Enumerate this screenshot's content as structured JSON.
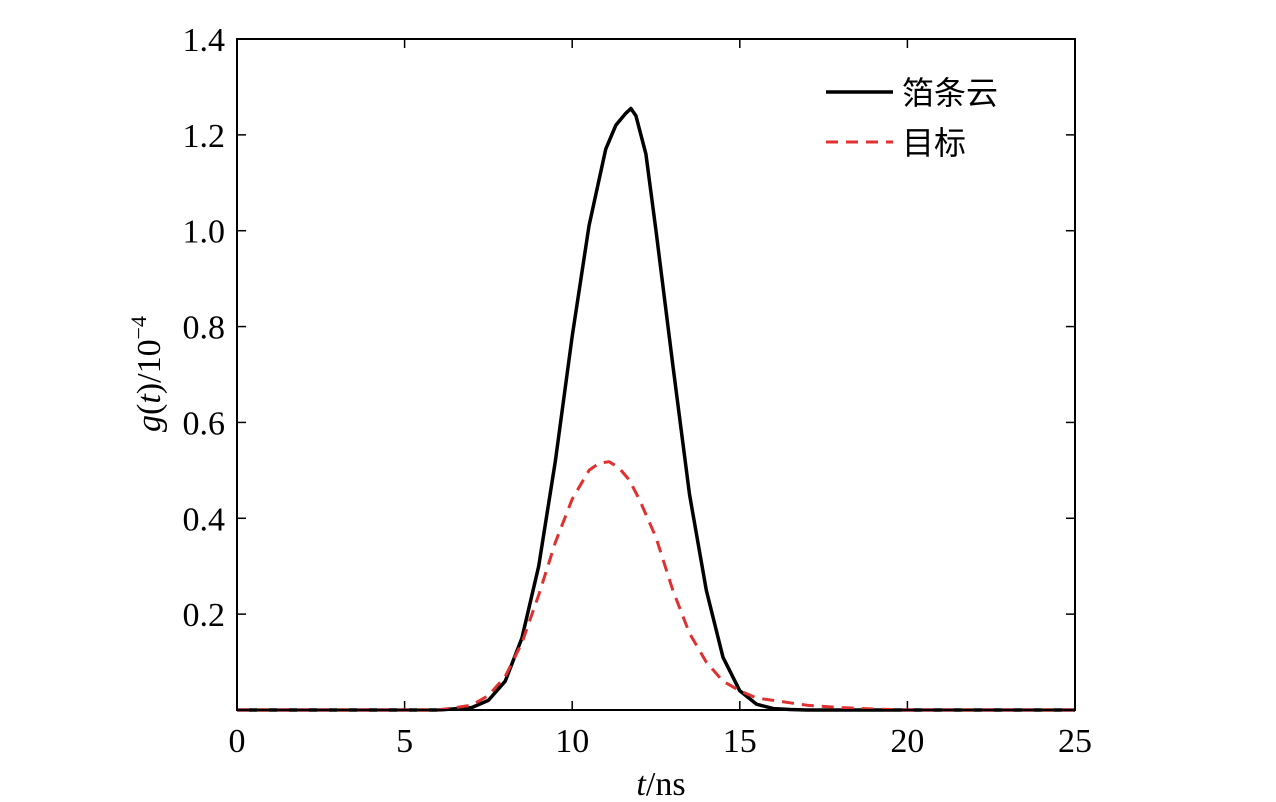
{
  "chart_data": {
    "type": "line",
    "xlabel_var": "t",
    "xlabel_unit": "/ns",
    "ylabel_var": "g",
    "ylabel_arg": "t",
    "ylabel_scale": "/10",
    "ylabel_exp": "−4",
    "xlim": [
      0,
      25
    ],
    "ylim": [
      0,
      1.4
    ],
    "xticks": [
      "0",
      "5",
      "10",
      "15",
      "20",
      "25"
    ],
    "yticks": [
      "0.2",
      "0.4",
      "0.6",
      "0.8",
      "1.0",
      "1.2",
      "1.4"
    ],
    "legend_position": "top-right",
    "series": [
      {
        "name": "箔条云",
        "style": "solid",
        "color": "#000000",
        "x": [
          0,
          6,
          7,
          7.5,
          8,
          8.5,
          9,
          9.5,
          10,
          10.5,
          11,
          11.3,
          11.6,
          11.75,
          11.9,
          12.2,
          12.5,
          13,
          13.5,
          14,
          14.5,
          15,
          15.5,
          16,
          16.5,
          17,
          18,
          25
        ],
        "y": [
          0,
          0,
          0.005,
          0.02,
          0.06,
          0.15,
          0.3,
          0.52,
          0.78,
          1.01,
          1.17,
          1.22,
          1.245,
          1.255,
          1.24,
          1.16,
          1.0,
          0.72,
          0.45,
          0.25,
          0.11,
          0.04,
          0.012,
          0.003,
          0.001,
          0,
          0,
          0
        ]
      },
      {
        "name": "目标",
        "style": "dashed",
        "color": "#e03030",
        "x": [
          0,
          6,
          7,
          7.5,
          8,
          8.5,
          9,
          9.5,
          10,
          10.5,
          10.8,
          11.1,
          11.4,
          11.7,
          12,
          12.5,
          13,
          13.5,
          14,
          14.5,
          15,
          15.5,
          16,
          16.5,
          17,
          18,
          19,
          20,
          25
        ],
        "y": [
          0,
          0,
          0.01,
          0.03,
          0.07,
          0.14,
          0.24,
          0.35,
          0.44,
          0.5,
          0.515,
          0.518,
          0.505,
          0.48,
          0.44,
          0.36,
          0.25,
          0.16,
          0.1,
          0.06,
          0.04,
          0.025,
          0.02,
          0.015,
          0.01,
          0.005,
          0.002,
          0,
          0
        ]
      }
    ]
  }
}
